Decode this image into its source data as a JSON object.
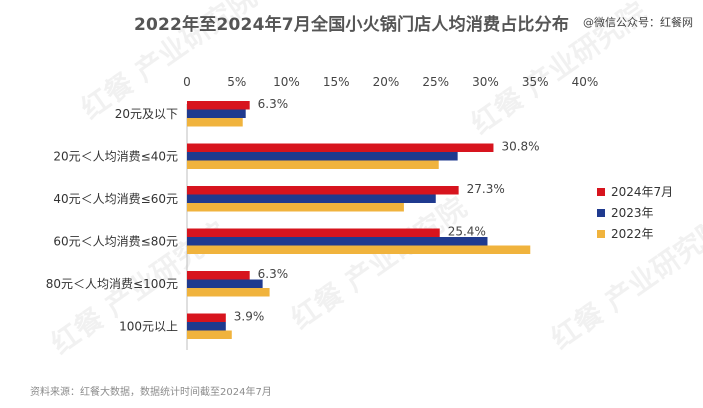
{
  "title": "2022年至2024年7月全国小火锅门店人均消费占比分布",
  "watermark": "@微信公众号：红餐网",
  "source": "资料来源：红餐大数据，数据统计时间截至2024年7月",
  "brand_watermark": "红餐 产业研究院",
  "colors": {
    "s2024": "#d7141e",
    "s2023": "#1f3a8f",
    "s2022": "#f0b33d"
  },
  "chart_data": {
    "type": "bar",
    "orientation": "horizontal",
    "categories": [
      "20元及以下",
      "20元＜人均消费≤40元",
      "40元＜人均消费≤60元",
      "60元＜人均消费≤80元",
      "80元＜人均消费≤100元",
      "100元以上"
    ],
    "series": [
      {
        "name": "2024年7月",
        "values": [
          6.3,
          30.8,
          27.3,
          25.4,
          6.3,
          3.9
        ],
        "labels": [
          "6.3%",
          "30.8%",
          "27.3%",
          "25.4%",
          "6.3%",
          "3.9%"
        ]
      },
      {
        "name": "2023年",
        "values": [
          5.9,
          27.2,
          25.0,
          30.2,
          7.6,
          3.9
        ]
      },
      {
        "name": "2022年",
        "values": [
          5.6,
          25.3,
          21.8,
          34.5,
          8.3,
          4.5
        ]
      }
    ],
    "x_ticks": [
      "0",
      "5%",
      "10%",
      "15%",
      "20%",
      "25%",
      "30%",
      "35%",
      "40%"
    ],
    "xlim": [
      0,
      40
    ],
    "grid": false,
    "legend_position": "right"
  }
}
